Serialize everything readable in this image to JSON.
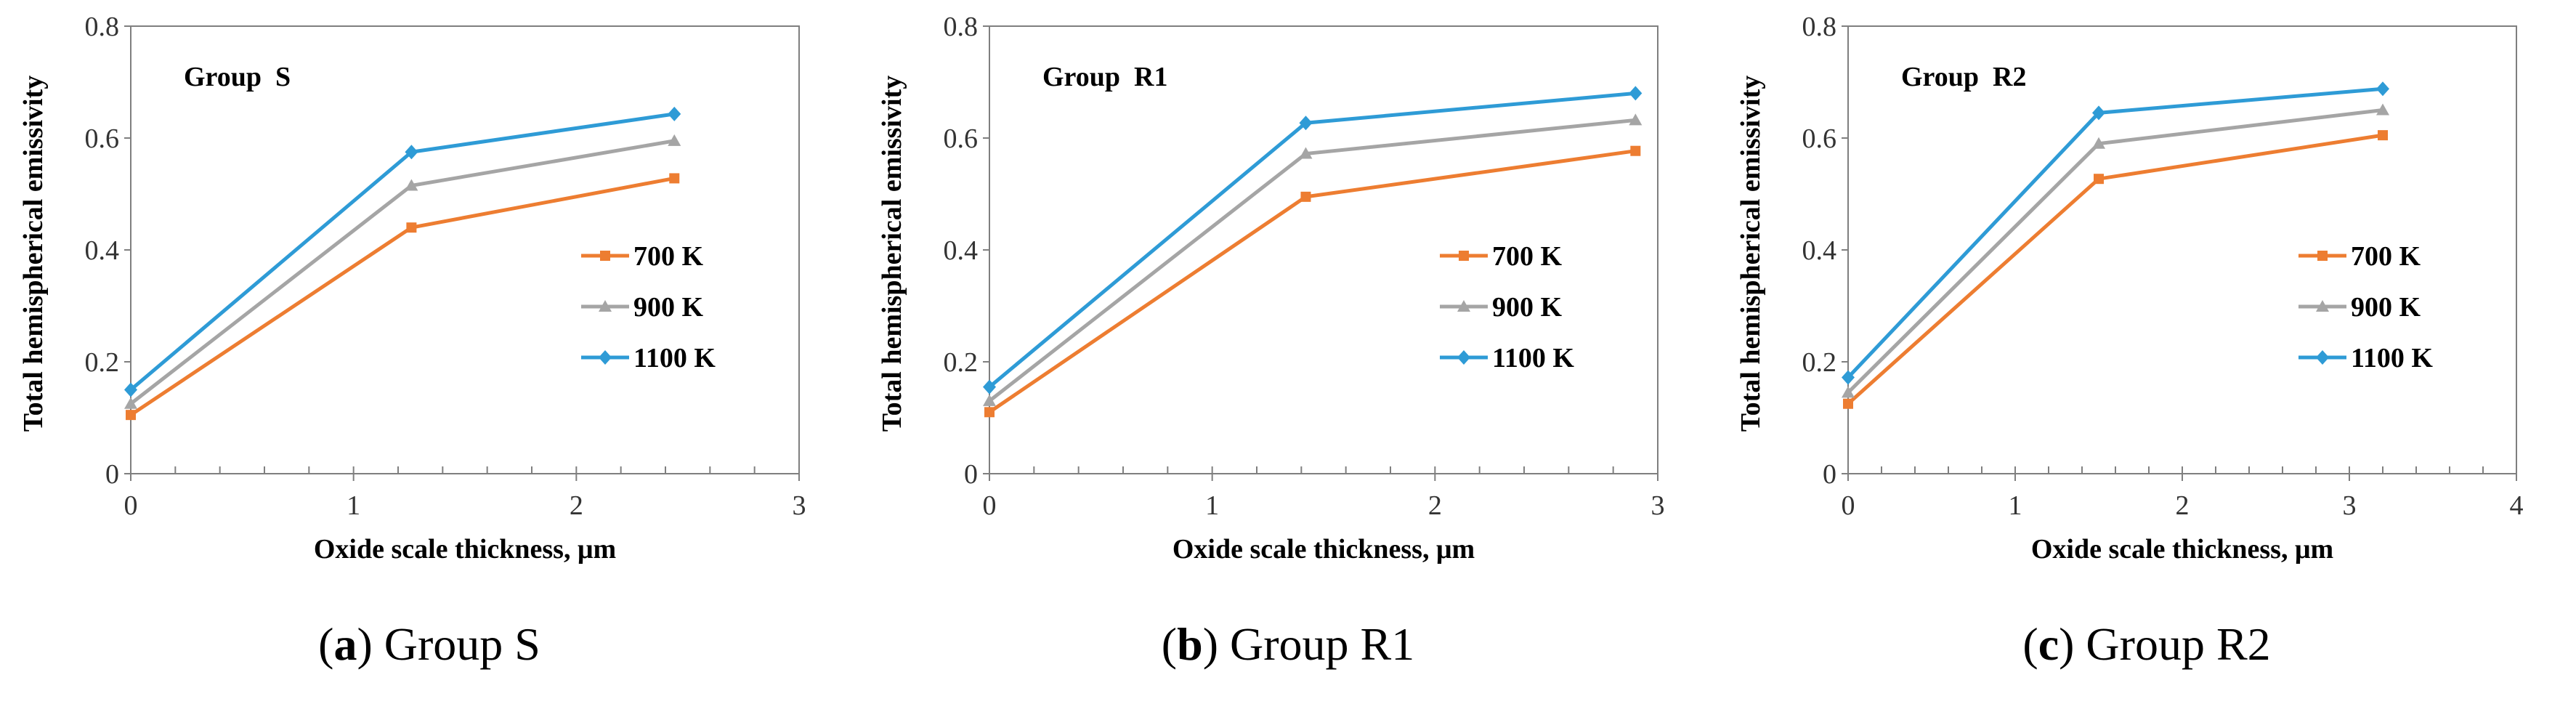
{
  "chart_data": [
    {
      "type": "line",
      "panel_letter": "a",
      "caption_text": "Group S",
      "group_label": "Group  S",
      "xlabel": "Oxide scale thickness, μm",
      "ylabel": "Total hemispherical emissivity",
      "xlim": [
        0,
        3
      ],
      "ylim": [
        0,
        0.8
      ],
      "xticks": [
        0,
        1,
        2,
        3
      ],
      "yticks": [
        0,
        0.2,
        0.4,
        0.6,
        0.8
      ],
      "xtick_labels": [
        "0",
        "1",
        "2",
        "3"
      ],
      "ytick_labels": [
        "0",
        "0.2",
        "0.4",
        "0.6",
        "0.8"
      ],
      "x_minor_step": 0.2,
      "legend_position": "center-right",
      "series": [
        {
          "name": "700 K",
          "color": "#ED7D31",
          "marker": "square",
          "x": [
            0,
            1.26,
            2.44
          ],
          "values": [
            0.105,
            0.44,
            0.528
          ]
        },
        {
          "name": "900 K",
          "color": "#A5A5A5",
          "marker": "triangle",
          "x": [
            0,
            1.26,
            2.44
          ],
          "values": [
            0.125,
            0.515,
            0.595
          ]
        },
        {
          "name": "1100 K",
          "color": "#2E9BD6",
          "marker": "diamond",
          "x": [
            0,
            1.26,
            2.44
          ],
          "values": [
            0.15,
            0.575,
            0.643
          ]
        }
      ]
    },
    {
      "type": "line",
      "panel_letter": "b",
      "caption_text": "Group R1",
      "group_label": "Group  R1",
      "xlabel": "Oxide scale thickness, μm",
      "ylabel": "Total hemispherical emissivity",
      "xlim": [
        0,
        3
      ],
      "ylim": [
        0,
        0.8
      ],
      "xticks": [
        0,
        1,
        2,
        3
      ],
      "yticks": [
        0,
        0.2,
        0.4,
        0.6,
        0.8
      ],
      "xtick_labels": [
        "0",
        "1",
        "2",
        "3"
      ],
      "ytick_labels": [
        "0",
        "0.2",
        "0.4",
        "0.6",
        "0.8"
      ],
      "x_minor_step": 0.2,
      "legend_position": "center-right",
      "series": [
        {
          "name": "700 K",
          "color": "#ED7D31",
          "marker": "square",
          "x": [
            0,
            1.42,
            2.9
          ],
          "values": [
            0.11,
            0.495,
            0.577
          ]
        },
        {
          "name": "900 K",
          "color": "#A5A5A5",
          "marker": "triangle",
          "x": [
            0,
            1.42,
            2.9
          ],
          "values": [
            0.13,
            0.572,
            0.632
          ]
        },
        {
          "name": "1100 K",
          "color": "#2E9BD6",
          "marker": "diamond",
          "x": [
            0,
            1.42,
            2.9
          ],
          "values": [
            0.155,
            0.627,
            0.68
          ]
        }
      ]
    },
    {
      "type": "line",
      "panel_letter": "c",
      "caption_text": "Group R2",
      "group_label": "Group  R2",
      "xlabel": "Oxide scale thickness, μm",
      "ylabel": "Total hemispherical emissivity",
      "xlim": [
        0,
        4
      ],
      "ylim": [
        0,
        0.8
      ],
      "xticks": [
        0,
        1,
        2,
        3,
        4
      ],
      "yticks": [
        0,
        0.2,
        0.4,
        0.6,
        0.8
      ],
      "xtick_labels": [
        "0",
        "1",
        "2",
        "3",
        "4"
      ],
      "ytick_labels": [
        "0",
        "0.2",
        "0.4",
        "0.6",
        "0.8"
      ],
      "x_minor_step": 0.2,
      "legend_position": "center-right",
      "series": [
        {
          "name": "700 K",
          "color": "#ED7D31",
          "marker": "square",
          "x": [
            0,
            1.5,
            3.2
          ],
          "values": [
            0.125,
            0.527,
            0.605
          ]
        },
        {
          "name": "900 K",
          "color": "#A5A5A5",
          "marker": "triangle",
          "x": [
            0,
            1.5,
            3.2
          ],
          "values": [
            0.145,
            0.59,
            0.65
          ]
        },
        {
          "name": "1100 K",
          "color": "#2E9BD6",
          "marker": "diamond",
          "x": [
            0,
            1.5,
            3.2
          ],
          "values": [
            0.172,
            0.645,
            0.688
          ]
        }
      ]
    }
  ]
}
